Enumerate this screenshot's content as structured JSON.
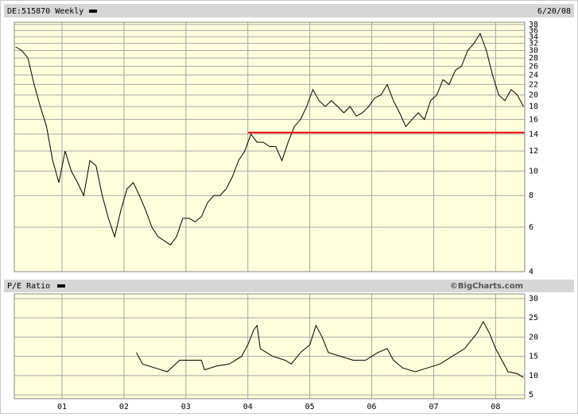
{
  "chart_data": [
    {
      "type": "line",
      "title": "DE:515870 Weekly",
      "date": "6/20/08",
      "x": [
        2000.25,
        2000.35,
        2000.45,
        2000.55,
        2000.65,
        2000.75,
        2000.85,
        2000.95,
        2001.05,
        2001.15,
        2001.25,
        2001.35,
        2001.45,
        2001.55,
        2001.65,
        2001.75,
        2001.85,
        2001.95,
        2002.05,
        2002.15,
        2002.25,
        2002.35,
        2002.45,
        2002.55,
        2002.65,
        2002.75,
        2002.85,
        2002.95,
        2003.05,
        2003.15,
        2003.25,
        2003.35,
        2003.45,
        2003.55,
        2003.65,
        2003.75,
        2003.85,
        2003.95,
        2004.05,
        2004.15,
        2004.25,
        2004.35,
        2004.45,
        2004.55,
        2004.65,
        2004.75,
        2004.85,
        2004.95,
        2005.05,
        2005.15,
        2005.25,
        2005.35,
        2005.45,
        2005.55,
        2005.65,
        2005.75,
        2005.85,
        2005.95,
        2006.05,
        2006.15,
        2006.25,
        2006.35,
        2006.45,
        2006.55,
        2006.65,
        2006.75,
        2006.85,
        2006.95,
        2007.05,
        2007.15,
        2007.25,
        2007.35,
        2007.45,
        2007.55,
        2007.65,
        2007.75,
        2007.85,
        2007.95,
        2008.05,
        2008.15,
        2008.25,
        2008.35,
        2008.45
      ],
      "series": [
        {
          "color": "#000000",
          "values": [
            31,
            30,
            28,
            22,
            18,
            15,
            11,
            9,
            12,
            10,
            9,
            8,
            11,
            10.5,
            8,
            6.5,
            5.5,
            7,
            8.5,
            9,
            8,
            7,
            6,
            5.5,
            5.3,
            5.1,
            5.5,
            6.5,
            6.5,
            6.3,
            6.6,
            7.5,
            8,
            8,
            8.5,
            9.5,
            11,
            12,
            14,
            13,
            13,
            12.5,
            12.5,
            11,
            13,
            15,
            16,
            18,
            21,
            19,
            18,
            19,
            18,
            17,
            18,
            16.5,
            17,
            18,
            19.5,
            20,
            22,
            19,
            17,
            15,
            16,
            17,
            16,
            19,
            20,
            23,
            22,
            25,
            26,
            30,
            32,
            35,
            30,
            24,
            20,
            19,
            21,
            20,
            18
          ]
        }
      ],
      "xlim": [
        2000.23,
        2008.47
      ],
      "xticks": [
        2001,
        2002,
        2003,
        2004,
        2005,
        2006,
        2007,
        2008
      ],
      "ylim": [
        4,
        38.8
      ],
      "log_scale": true,
      "grid": true,
      "yticks": [
        4,
        6,
        8,
        10,
        12,
        14,
        16,
        18,
        20,
        22,
        24,
        26,
        28,
        30,
        32,
        34,
        36,
        38
      ],
      "reference_line": {
        "value": 14.2,
        "x_start": 2004.0,
        "color": "#ff0000"
      }
    },
    {
      "type": "line",
      "title": "P/E Ratio",
      "source": "©BigCharts.com",
      "x": [
        2002.2,
        2002.3,
        2002.5,
        2002.7,
        2002.9,
        2003.1,
        2003.25,
        2003.3,
        2003.5,
        2003.7,
        2003.9,
        2004.0,
        2004.1,
        2004.15,
        2004.2,
        2004.4,
        2004.6,
        2004.7,
        2004.85,
        2005.0,
        2005.1,
        2005.2,
        2005.3,
        2005.5,
        2005.7,
        2005.9,
        2006.1,
        2006.25,
        2006.35,
        2006.5,
        2006.7,
        2006.9,
        2007.1,
        2007.3,
        2007.5,
        2007.7,
        2007.8,
        2007.9,
        2008.0,
        2008.1,
        2008.2,
        2008.35,
        2008.45
      ],
      "series": [
        {
          "color": "#000000",
          "values": [
            16,
            13,
            12,
            11,
            14,
            14,
            14,
            11.5,
            12.5,
            13,
            15,
            18,
            22,
            23,
            17,
            15,
            14,
            13,
            16,
            18,
            23,
            20,
            16,
            15,
            14,
            14,
            16,
            17,
            14,
            12,
            11,
            12,
            13,
            15,
            17,
            21,
            24,
            21,
            17,
            14,
            11,
            10.5,
            9.5
          ]
        }
      ],
      "xlim": [
        2000.23,
        2008.47
      ],
      "xticks": [
        {
          "value": 2001,
          "label": "01"
        },
        {
          "value": 2002,
          "label": "02"
        },
        {
          "value": 2003,
          "label": "03"
        },
        {
          "value": 2004,
          "label": "04"
        },
        {
          "value": 2005,
          "label": "05"
        },
        {
          "value": 2006,
          "label": "06"
        },
        {
          "value": 2007,
          "label": "07"
        },
        {
          "value": 2008,
          "label": "08"
        }
      ],
      "ylim": [
        4,
        31.2
      ],
      "grid": true,
      "yticks": [
        5,
        10,
        15,
        20,
        25,
        30
      ]
    }
  ]
}
